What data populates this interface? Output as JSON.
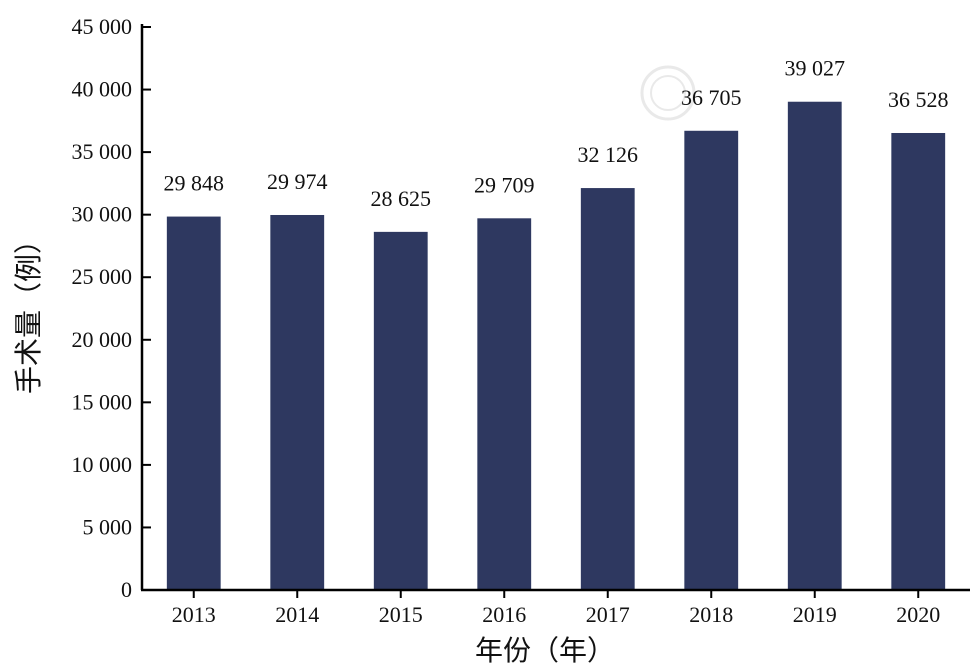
{
  "chart_data": {
    "type": "bar",
    "categories": [
      "2013",
      "2014",
      "2015",
      "2016",
      "2017",
      "2018",
      "2019",
      "2020"
    ],
    "values": [
      29848,
      29974,
      28625,
      29709,
      32126,
      36705,
      39027,
      36528
    ],
    "value_labels": [
      "29 848",
      "29 974",
      "28 625",
      "29 709",
      "32 126",
      "36 705",
      "39 027",
      "36 528"
    ],
    "xlabel": "年份（年）",
    "ylabel": "手术量（例）",
    "ylim": [
      0,
      45000
    ],
    "y_ticks": [
      0,
      5000,
      10000,
      15000,
      20000,
      25000,
      30000,
      35000,
      40000,
      45000
    ],
    "y_tick_labels": [
      "0",
      "5 000",
      "10 000",
      "15 000",
      "20 000",
      "25 000",
      "30 000",
      "35 000",
      "40 000",
      "45 000"
    ],
    "bar_color": "#2e3860",
    "grid": false,
    "legend": "none"
  }
}
